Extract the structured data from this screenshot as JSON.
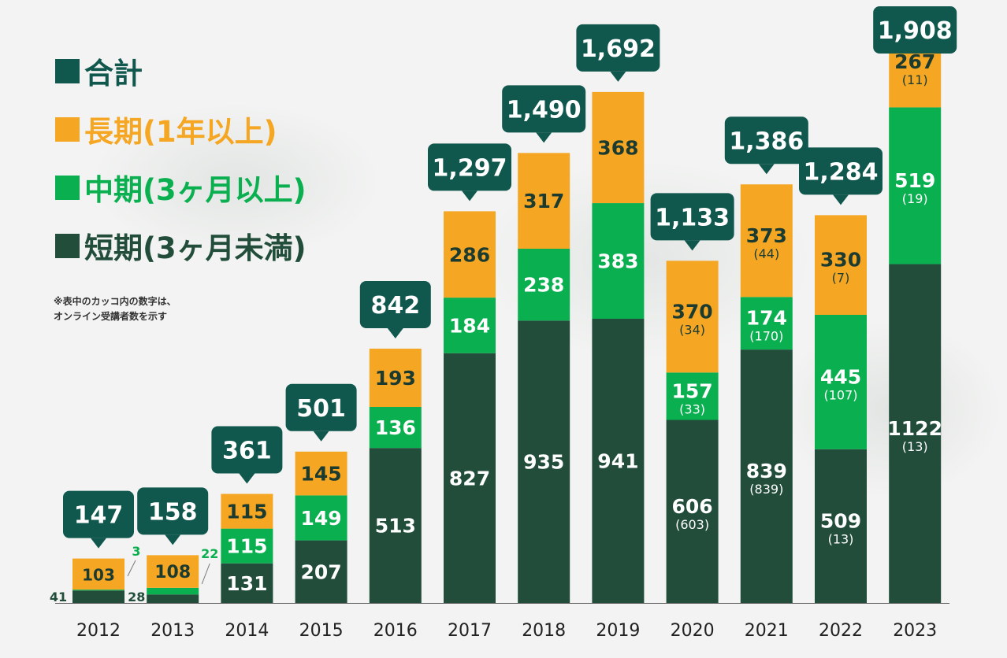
{
  "legend": {
    "total": "合計",
    "long": "長期(1年以上)",
    "mid": "中期(3ヶ月以上)",
    "short": "短期(3ヶ月未満)"
  },
  "note": [
    "※表中のカッコ内の数字は、",
    "オンライン受講者数を示す"
  ],
  "colors": {
    "total": "#10574d",
    "long": "#f5a623",
    "mid": "#0aaf50",
    "short": "#214d3a",
    "axis": "#555555",
    "text_dark": "#1c3b30"
  },
  "chart_data": {
    "type": "bar",
    "stacked": true,
    "categories": [
      "2012",
      "2013",
      "2014",
      "2015",
      "2016",
      "2017",
      "2018",
      "2019",
      "2020",
      "2021",
      "2022",
      "2023"
    ],
    "series": [
      {
        "name": "短期(3ヶ月未満)",
        "values": [
          41,
          28,
          131,
          207,
          513,
          827,
          935,
          941,
          606,
          839,
          509,
          1122
        ]
      },
      {
        "name": "中期(3ヶ月以上)",
        "values": [
          3,
          22,
          115,
          149,
          136,
          184,
          238,
          383,
          157,
          174,
          445,
          519
        ]
      },
      {
        "name": "長期(1年以上)",
        "values": [
          103,
          108,
          115,
          145,
          193,
          286,
          317,
          368,
          370,
          373,
          330,
          267
        ]
      }
    ],
    "online": {
      "short": [
        null,
        null,
        null,
        null,
        null,
        null,
        null,
        null,
        "(603)",
        "(839)",
        "(13)",
        "(13)"
      ],
      "mid": [
        null,
        null,
        null,
        null,
        null,
        null,
        null,
        null,
        "(33)",
        "(170)",
        "(107)",
        "(19)"
      ],
      "long": [
        null,
        null,
        null,
        null,
        null,
        null,
        null,
        null,
        "(34)",
        "(44)",
        "(7)",
        "(11)"
      ]
    },
    "totals": [
      "147",
      "158",
      "361",
      "501",
      "842",
      "1,297",
      "1,490",
      "1,692",
      "1,133",
      "1,386",
      "1,284",
      "1,908"
    ],
    "ylim": [
      0,
      1908
    ]
  }
}
